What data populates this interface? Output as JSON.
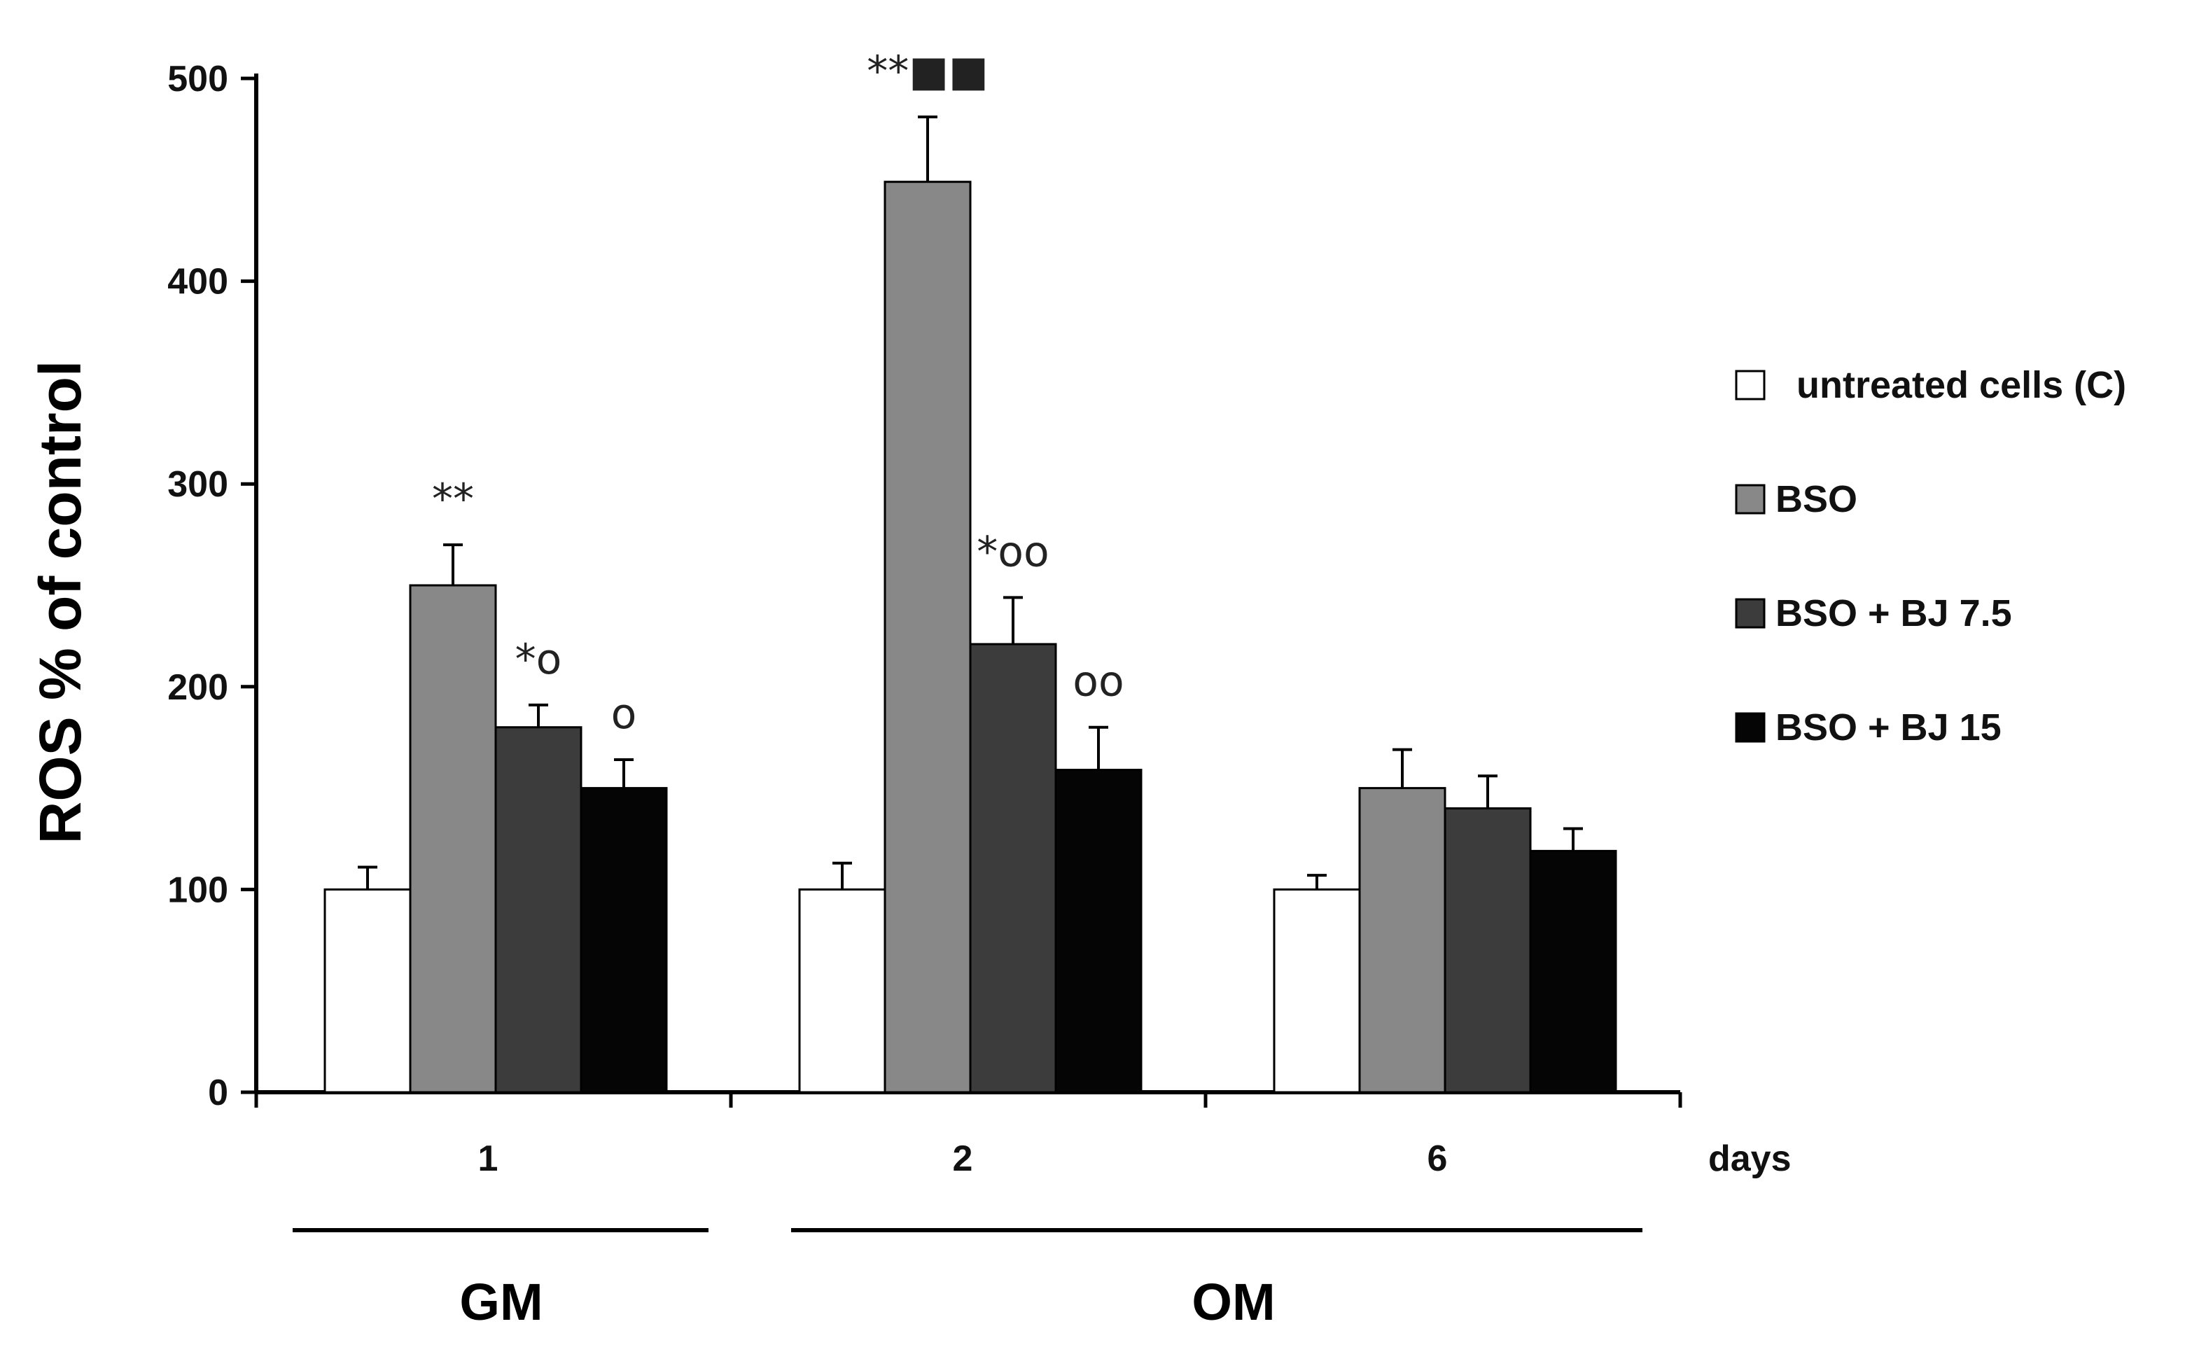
{
  "chart_data": {
    "type": "bar",
    "title": "",
    "xlabel": "days",
    "ylabel": "ROS % of control",
    "ylim": [
      0,
      500
    ],
    "yticks": [
      "0",
      "100",
      "200",
      "300",
      "400",
      "500"
    ],
    "categories": [
      "1",
      "2",
      "6"
    ],
    "series": [
      {
        "name": "untreated cells (C)",
        "color": "#ffffff",
        "values": [
          100,
          100,
          100
        ],
        "errors": [
          11,
          13,
          7
        ]
      },
      {
        "name": "BSO",
        "color": "#888888",
        "values": [
          250,
          449,
          150
        ],
        "errors": [
          20,
          32,
          19
        ]
      },
      {
        "name": "BSO + BJ 7.5",
        "color": "#3c3c3c",
        "values": [
          180,
          221,
          140
        ],
        "errors": [
          11,
          23,
          16
        ]
      },
      {
        "name": "BSO + BJ 15",
        "color": "#050505",
        "values": [
          150,
          159,
          119
        ],
        "errors": [
          14,
          21,
          11
        ]
      }
    ],
    "annotations": [
      {
        "category": "1",
        "series": "BSO",
        "text": "**"
      },
      {
        "category": "1",
        "series": "BSO + BJ 7.5",
        "text": "*o"
      },
      {
        "category": "1",
        "series": "BSO + BJ 15",
        "text": "o"
      },
      {
        "category": "2",
        "series": "BSO",
        "text": "**■■"
      },
      {
        "category": "2",
        "series": "BSO + BJ 7.5",
        "text": "*oo"
      },
      {
        "category": "2",
        "series": "BSO + BJ 15",
        "text": "oo"
      }
    ],
    "groups": [
      {
        "label": "GM",
        "categories": [
          "1"
        ]
      },
      {
        "label": "OM",
        "categories": [
          "2",
          "6"
        ]
      }
    ],
    "legend_position": "right"
  }
}
